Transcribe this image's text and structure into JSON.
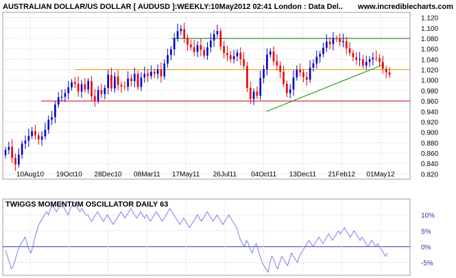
{
  "header": {
    "title": "AUSTRALIAN DOLLAR/US DOLLAR [ AUDUSD ]:WEEKLY:10May2012 02:41 London : Data Del..",
    "site": "www.incrediblecharts.com"
  },
  "chart_data": [
    {
      "type": "candlestick",
      "title": "AUSTRALIAN DOLLAR/US DOLLAR [ AUDUSD ]:WEEKLY:10May2012 02:41 London : Data Del..",
      "ylim": [
        0.81,
        1.13
      ],
      "y_ticks": [
        "1.120",
        "1.100",
        "1.080",
        "1.060",
        "1.040",
        "1.020",
        "1.000",
        "0.980",
        "0.960",
        "0.940",
        "0.920",
        "0.900",
        "0.880",
        "0.860",
        "0.840",
        "0.820"
      ],
      "x_ticks": [
        "10Aug10",
        "19Oct10",
        "28Dec10",
        "08Mar11",
        "17May11",
        "26Jul11",
        "04Oct11",
        "13Dec11",
        "21Feb12",
        "01May12"
      ],
      "grid": true,
      "colors": {
        "up": "#0000cc",
        "down": "#ee0000",
        "grid": "#c8c8c8"
      },
      "horizontal_lines": [
        {
          "y": 1.08,
          "color": "#006600"
        },
        {
          "y": 1.02,
          "color": "#e69500"
        },
        {
          "y": 0.96,
          "color": "#cc0000"
        }
      ],
      "trend_lines": [
        {
          "from": [
            1.0,
            0.94
          ],
          "to": [
            0.935,
            1.03
          ],
          "color": "#008800"
        }
      ],
      "closes": [
        0.866,
        0.872,
        0.851,
        0.838,
        0.857,
        0.878,
        0.884,
        0.893,
        0.902,
        0.894,
        0.886,
        0.892,
        0.905,
        0.924,
        0.929,
        0.953,
        0.967,
        0.968,
        0.975,
        0.986,
        0.996,
        0.993,
        0.978,
        0.992,
        0.982,
        0.998,
        0.969,
        0.961,
        0.981,
        0.973,
        0.985,
        1.01,
        0.984,
        1.007,
        0.991,
        0.988,
        0.987,
        1.003,
        0.998,
        1.012,
        0.987,
        1.005,
        1.012,
        1.008,
        1.016,
        1.012,
        1.02,
        1.007,
        1.032,
        1.048,
        1.059,
        1.08,
        1.094,
        1.098,
        1.081,
        1.068,
        1.063,
        1.054,
        1.067,
        1.058,
        1.047,
        1.063,
        1.076,
        1.088,
        1.094,
        1.065,
        1.052,
        1.048,
        1.04,
        1.046,
        1.053,
        1.04,
        1.027,
        0.985,
        0.964,
        0.978,
        0.97,
        1.004,
        1.021,
        1.049,
        1.055,
        1.036,
        1.028,
        1.016,
        0.993,
        0.975,
        0.982,
        1.005,
        1.02,
        1.015,
        1.006,
        1.001,
        1.024,
        1.032,
        1.045,
        1.05,
        1.062,
        1.074,
        1.069,
        1.08,
        1.079,
        1.073,
        1.075,
        1.061,
        1.052,
        1.044,
        1.039,
        1.04,
        1.028,
        1.035,
        1.04,
        1.043,
        1.042,
        1.035,
        1.022,
        1.015,
        1.01
      ],
      "y_axis_side": "right"
    },
    {
      "type": "line",
      "title": "TWIGGS MOMENTUM OSCILLATOR DAILY 63",
      "ylim": [
        -9,
        15
      ],
      "y_ticks": [
        "10%",
        "5%",
        "0%",
        "-5%"
      ],
      "grid": true,
      "zero_line": true,
      "colors": {
        "line": "#7a7af0",
        "zero": "#3333aa"
      },
      "series": [
        {
          "values": [
            -1,
            -3,
            -5,
            -7,
            -6,
            -4,
            -2,
            0,
            1,
            2,
            3,
            1,
            -1,
            -2,
            0,
            3,
            5,
            7,
            8,
            9,
            10,
            11,
            10,
            12,
            13,
            12,
            11,
            12,
            13,
            14,
            12,
            11,
            10,
            12,
            13,
            14,
            13,
            12,
            11,
            12,
            11,
            10,
            10,
            9,
            8,
            9,
            10,
            11,
            10,
            9,
            8,
            9,
            10,
            9,
            8,
            7,
            8,
            9,
            10,
            11,
            10,
            9,
            10,
            11,
            12,
            11,
            10,
            9,
            10,
            11,
            10,
            9,
            10,
            9,
            8,
            9,
            10,
            11,
            10,
            9,
            8,
            9,
            10,
            11,
            12,
            11,
            10,
            9,
            8,
            7,
            8,
            9,
            8,
            7,
            6,
            7,
            8,
            9,
            10,
            9,
            8,
            9,
            10,
            11,
            10,
            9,
            8,
            9,
            10,
            9,
            8,
            7,
            8,
            9,
            10,
            9,
            8,
            7,
            6,
            4,
            2,
            1,
            0,
            2,
            1,
            -1,
            -2,
            0,
            1,
            -1,
            -3,
            -5,
            -6,
            -7,
            -8,
            -5,
            -3,
            -4,
            -6,
            -7,
            -5,
            -3,
            -4,
            -5,
            -6,
            -4,
            -2,
            -3,
            -4,
            -5,
            -3,
            -2,
            -1,
            0,
            1,
            2,
            1,
            0,
            1,
            2,
            3,
            2,
            1,
            2,
            3,
            4,
            3,
            2,
            3,
            4,
            5,
            4,
            5,
            6,
            5,
            4,
            3,
            4,
            5,
            4,
            3,
            2,
            3,
            2,
            1,
            0,
            1,
            2,
            1,
            0,
            1,
            0,
            -1,
            -2,
            -3,
            -2
          ]
        }
      ]
    }
  ]
}
